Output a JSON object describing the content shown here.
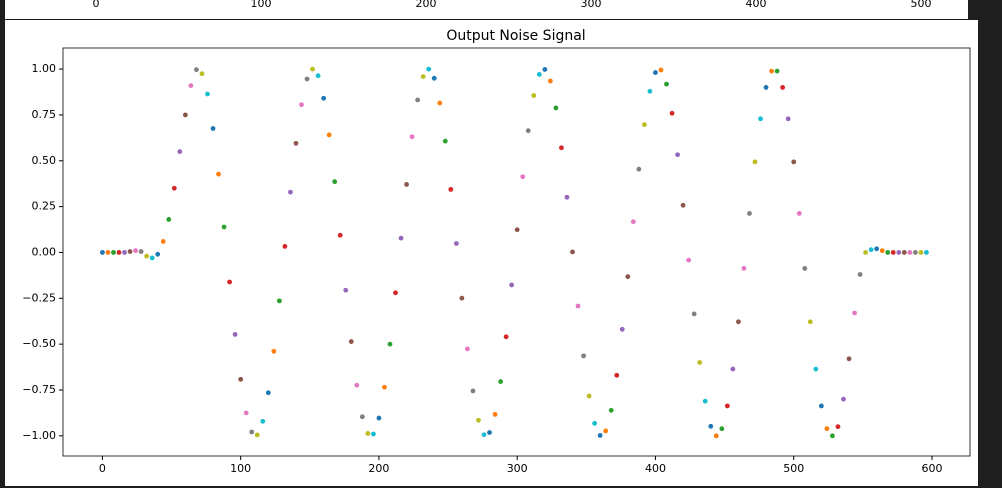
{
  "chart_data": [
    {
      "type": "axis",
      "xlim": [
        -20,
        520
      ],
      "xticks": [
        0,
        100,
        200,
        300,
        400,
        500
      ]
    },
    {
      "type": "scatter",
      "title": "Output Noise Signal",
      "colors": [
        "#1f77b4",
        "#ff7f0e",
        "#2ca02c",
        "#d62728",
        "#9467bd",
        "#8c564b",
        "#e377c2",
        "#7f7f7f",
        "#bcbd22",
        "#17becf"
      ],
      "x": [
        0,
        4,
        8,
        12,
        16,
        20,
        24,
        28,
        32,
        36,
        40,
        44,
        48,
        52,
        56,
        60,
        64,
        68,
        72,
        76,
        80,
        84,
        88,
        92,
        96,
        100,
        104,
        108,
        112,
        116,
        120,
        124,
        128,
        132,
        136,
        140,
        144,
        148,
        152,
        156,
        160,
        164,
        168,
        172,
        176,
        180,
        184,
        188,
        192,
        196,
        200,
        204,
        208,
        212,
        216,
        220,
        224,
        228,
        232,
        236,
        240,
        244,
        248,
        252,
        256,
        260,
        264,
        268,
        272,
        276,
        280,
        284,
        288,
        292,
        296,
        300,
        304,
        308,
        312,
        316,
        320,
        324,
        328,
        332,
        336,
        340,
        344,
        348,
        352,
        356,
        360,
        364,
        368,
        372,
        376,
        380,
        384,
        388,
        392,
        396,
        400,
        404,
        408,
        412,
        416,
        420,
        424,
        428,
        432,
        436,
        440,
        444,
        448,
        452,
        456,
        460,
        464,
        468,
        472,
        476,
        480,
        484,
        488,
        492,
        496,
        500,
        504,
        508,
        512,
        516,
        520,
        524,
        528,
        532,
        536,
        540,
        544,
        548,
        552,
        556,
        560,
        564,
        568,
        572,
        576,
        580,
        584,
        588,
        592,
        596
      ],
      "values": [
        0,
        0,
        0,
        0,
        0,
        0.005,
        0.01,
        0.005,
        -0.02,
        -0.03,
        -0.01,
        0.06,
        0.18,
        0.35,
        0.55,
        0.75,
        0.91,
        0.997,
        0.975,
        0.864,
        0.676,
        0.427,
        0.139,
        -0.161,
        -0.447,
        -0.692,
        -0.875,
        -0.979,
        -0.995,
        -0.921,
        -0.765,
        -0.539,
        -0.264,
        0.033,
        0.329,
        0.595,
        0.806,
        0.946,
        1.0,
        0.964,
        0.841,
        0.641,
        0.386,
        0.094,
        -0.206,
        -0.486,
        -0.724,
        -0.896,
        -0.987,
        -0.99,
        -0.903,
        -0.735,
        -0.5,
        -0.22,
        0.078,
        0.371,
        0.631,
        0.832,
        0.959,
        1.0,
        0.95,
        0.815,
        0.607,
        0.344,
        0.049,
        -0.249,
        -0.526,
        -0.755,
        -0.915,
        -0.994,
        -0.982,
        -0.883,
        -0.704,
        -0.46,
        -0.177,
        0.124,
        0.413,
        0.664,
        0.856,
        0.971,
        0.998,
        0.935,
        0.788,
        0.571,
        0.301,
        0.003,
        -0.292,
        -0.564,
        -0.783,
        -0.932,
        -0.998,
        -0.973,
        -0.861,
        -0.67,
        -0.419,
        -0.132,
        0.168,
        0.454,
        0.697,
        0.879,
        0.981,
        0.995,
        0.918,
        0.759,
        0.533,
        0.257,
        -0.042,
        -0.335,
        -0.6,
        -0.811,
        -0.948,
        -1.0,
        -0.961,
        -0.837,
        -0.636,
        -0.378,
        -0.087,
        0.213,
        0.494,
        0.729,
        0.9,
        0.989,
        0.989,
        0.9,
        0.729,
        0.494,
        0.213,
        -0.087,
        -0.378,
        -0.636,
        -0.837,
        -0.961,
        -1.0,
        -0.95,
        -0.8,
        -0.58,
        -0.33,
        -0.12,
        0,
        0.015,
        0.02,
        0.01,
        0,
        0,
        0,
        0,
        0,
        0,
        0,
        0
      ],
      "xlim": [
        -28.5,
        627.5
      ],
      "ylim": [
        -1.11,
        1.115
      ],
      "xticks": [
        0,
        100,
        200,
        300,
        400,
        500,
        600
      ],
      "yticks": [
        {
          "value": -1,
          "label": "−1.00"
        },
        {
          "value": -0.75,
          "label": "−0.75"
        },
        {
          "value": -0.5,
          "label": "−0.50"
        },
        {
          "value": -0.25,
          "label": "−0.25"
        },
        {
          "value": 0,
          "label": "0.00"
        },
        {
          "value": 0.25,
          "label": "0.25"
        },
        {
          "value": 0.5,
          "label": "0.50"
        },
        {
          "value": 0.75,
          "label": "0.75"
        },
        {
          "value": 1,
          "label": "1.00"
        }
      ]
    }
  ]
}
